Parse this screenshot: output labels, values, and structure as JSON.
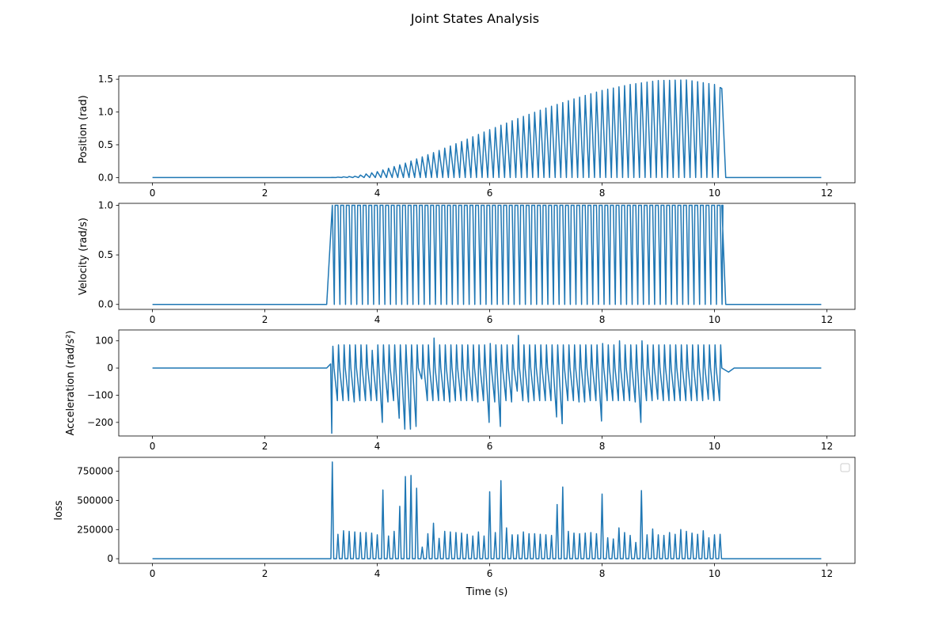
{
  "figure": {
    "title": "Joint States Analysis",
    "xlabel": "Time (s)"
  },
  "chart_data": [
    {
      "type": "line",
      "ylabel": "Position (rad)",
      "xlim": [
        -0.6,
        12.5
      ],
      "ylim": [
        -0.08,
        1.55
      ],
      "xticks": [
        0,
        2,
        4,
        6,
        8,
        10,
        12
      ],
      "yticks": [
        0.0,
        0.5,
        1.0,
        1.5
      ],
      "ytick_labels": [
        "0.0",
        "0.5",
        "1.0",
        "1.5"
      ],
      "show_xlabel": false,
      "color": "#1f77b4",
      "series": [
        {
          "kind": "sampled",
          "segments": [
            {
              "x": [
                0.0,
                3.1
              ],
              "y": [
                0,
                0
              ]
            },
            {
              "x": [
                3.15,
                3.6,
                4.0,
                4.5,
                5.0,
                5.5,
                6.0,
                6.5,
                7.0,
                7.5,
                8.0,
                8.5,
                9.0,
                9.5,
                10.0,
                10.13
              ],
              "y": [
                0.0,
                0.02,
                0.09,
                0.22,
                0.38,
                0.55,
                0.73,
                0.9,
                1.06,
                1.2,
                1.33,
                1.42,
                1.48,
                1.49,
                1.42,
                1.36
              ]
            },
            {
              "x": [
                10.2,
                11.9
              ],
              "y": [
                0,
                0
              ]
            }
          ],
          "oscillation": {
            "start": 3.2,
            "end": 10.13,
            "period": 0.1,
            "low": 0
          }
        }
      ]
    },
    {
      "type": "line",
      "ylabel": "Velocity (rad/s)",
      "xlim": [
        -0.6,
        12.5
      ],
      "ylim": [
        -0.05,
        1.02
      ],
      "xticks": [
        0,
        2,
        4,
        6,
        8,
        10,
        12
      ],
      "yticks": [
        0.0,
        0.5,
        1.0
      ],
      "ytick_labels": [
        "0.0",
        "0.5",
        "1.0"
      ],
      "show_xlabel": false,
      "color": "#1f77b4",
      "series": [
        {
          "kind": "square",
          "baseline": 0,
          "high": 1.0,
          "flat_start": [
            0.0,
            3.1
          ],
          "pulses": {
            "start": 3.2,
            "end": 10.13,
            "period": 0.1
          },
          "flat_end": [
            10.2,
            11.9
          ]
        }
      ]
    },
    {
      "type": "line",
      "ylabel": "Acceleration (rad/s²)",
      "xlim": [
        -0.6,
        12.5
      ],
      "ylim": [
        -250,
        140
      ],
      "xticks": [
        0,
        2,
        4,
        6,
        8,
        10,
        12
      ],
      "yticks": [
        100,
        0,
        -100,
        -200
      ],
      "ytick_labels": [
        "100",
        "0",
        "−100",
        "−200"
      ],
      "show_xlabel": false,
      "color": "#1f77b4",
      "series": [
        {
          "kind": "spikes",
          "baseline": 0,
          "flat_start": [
            0.0,
            3.1
          ],
          "ramp_in": {
            "x": [
              3.1,
              3.17
            ],
            "y": [
              0,
              15
            ]
          },
          "spikes_x": [
            3.2,
            3.3,
            3.4,
            3.5,
            3.6,
            3.7,
            3.8,
            3.9,
            4.0,
            4.1,
            4.2,
            4.3,
            4.4,
            4.5,
            4.6,
            4.7,
            4.8,
            4.9,
            5.0,
            5.1,
            5.2,
            5.3,
            5.4,
            5.5,
            5.6,
            5.7,
            5.8,
            5.9,
            6.0,
            6.1,
            6.2,
            6.3,
            6.4,
            6.5,
            6.6,
            6.7,
            6.8,
            6.9,
            7.0,
            7.1,
            7.2,
            7.3,
            7.4,
            7.5,
            7.6,
            7.7,
            7.8,
            7.9,
            8.0,
            8.1,
            8.2,
            8.3,
            8.4,
            8.5,
            8.6,
            8.7,
            8.8,
            8.9,
            9.0,
            9.1,
            9.2,
            9.3,
            9.4,
            9.5,
            9.6,
            9.7,
            9.8,
            9.9,
            10.0,
            10.1
          ],
          "spikes_up": [
            80,
            85,
            85,
            85,
            85,
            85,
            85,
            65,
            85,
            85,
            85,
            85,
            85,
            85,
            85,
            85,
            85,
            85,
            110,
            85,
            85,
            85,
            85,
            85,
            85,
            85,
            85,
            85,
            90,
            85,
            85,
            85,
            85,
            120,
            85,
            85,
            85,
            85,
            85,
            85,
            85,
            85,
            85,
            85,
            85,
            85,
            85,
            85,
            90,
            85,
            85,
            100,
            85,
            85,
            85,
            100,
            85,
            85,
            85,
            85,
            85,
            85,
            85,
            85,
            85,
            85,
            85,
            85,
            85,
            85
          ],
          "spikes_down": [
            -240,
            -120,
            -120,
            -120,
            -125,
            -120,
            -120,
            -120,
            -120,
            -200,
            -125,
            -120,
            -185,
            -225,
            -225,
            -215,
            -40,
            -120,
            -120,
            -120,
            -120,
            -125,
            -120,
            -120,
            -120,
            -120,
            -125,
            -120,
            -200,
            -125,
            -215,
            -120,
            -125,
            -85,
            -120,
            -125,
            -120,
            -120,
            -120,
            -120,
            -180,
            -205,
            -120,
            -120,
            -125,
            -125,
            -120,
            -120,
            -195,
            -120,
            -120,
            -120,
            -120,
            -120,
            -125,
            -200,
            -120,
            -120,
            -115,
            -120,
            -120,
            -120,
            -120,
            -120,
            -120,
            -120,
            -120,
            -115,
            -120,
            -120
          ],
          "ramp_out": {
            "x": [
              10.13,
              10.25,
              10.35
            ],
            "y": [
              0,
              -15,
              0
            ]
          },
          "flat_end": [
            10.35,
            11.9
          ]
        }
      ]
    },
    {
      "type": "line",
      "ylabel": "loss",
      "xlim": [
        -0.6,
        12.5
      ],
      "ylim": [
        -40000,
        870000
      ],
      "xticks": [
        0,
        2,
        4,
        6,
        8,
        10,
        12
      ],
      "xtick_labels": [
        "0",
        "2",
        "4",
        "6",
        "8",
        "10",
        "12"
      ],
      "yticks": [
        0,
        250000,
        500000,
        750000
      ],
      "ytick_labels": [
        "0",
        "250000",
        "500000",
        "750000"
      ],
      "show_xlabel": true,
      "legend": {
        "placement": "top-right",
        "entries": []
      },
      "color": "#1f77b4",
      "series": [
        {
          "kind": "peaks",
          "baseline": 0,
          "flat_start": [
            0.0,
            3.15
          ],
          "peaks_x": [
            3.2,
            3.3,
            3.4,
            3.5,
            3.6,
            3.7,
            3.8,
            3.9,
            4.0,
            4.1,
            4.2,
            4.3,
            4.4,
            4.5,
            4.6,
            4.7,
            4.8,
            4.9,
            5.0,
            5.1,
            5.2,
            5.3,
            5.4,
            5.5,
            5.6,
            5.7,
            5.8,
            5.9,
            6.0,
            6.1,
            6.2,
            6.3,
            6.4,
            6.5,
            6.6,
            6.7,
            6.8,
            6.9,
            7.0,
            7.1,
            7.2,
            7.3,
            7.4,
            7.5,
            7.6,
            7.7,
            7.8,
            7.9,
            8.0,
            8.1,
            8.2,
            8.3,
            8.4,
            8.5,
            8.6,
            8.7,
            8.8,
            8.9,
            9.0,
            9.1,
            9.2,
            9.3,
            9.4,
            9.5,
            9.6,
            9.7,
            9.8,
            9.9,
            10.0,
            10.1
          ],
          "peaks_y": [
            830000,
            210000,
            240000,
            235000,
            230000,
            225000,
            225000,
            220000,
            205000,
            590000,
            195000,
            235000,
            450000,
            705000,
            715000,
            605000,
            100000,
            215000,
            305000,
            175000,
            235000,
            230000,
            225000,
            220000,
            210000,
            195000,
            230000,
            195000,
            575000,
            225000,
            670000,
            265000,
            205000,
            205000,
            230000,
            215000,
            215000,
            210000,
            205000,
            200000,
            465000,
            615000,
            235000,
            220000,
            215000,
            220000,
            225000,
            215000,
            555000,
            180000,
            170000,
            265000,
            225000,
            200000,
            140000,
            585000,
            205000,
            255000,
            205000,
            200000,
            225000,
            210000,
            250000,
            235000,
            220000,
            210000,
            240000,
            180000,
            205000,
            210000
          ],
          "flat_end": [
            10.15,
            11.9
          ]
        }
      ]
    }
  ]
}
